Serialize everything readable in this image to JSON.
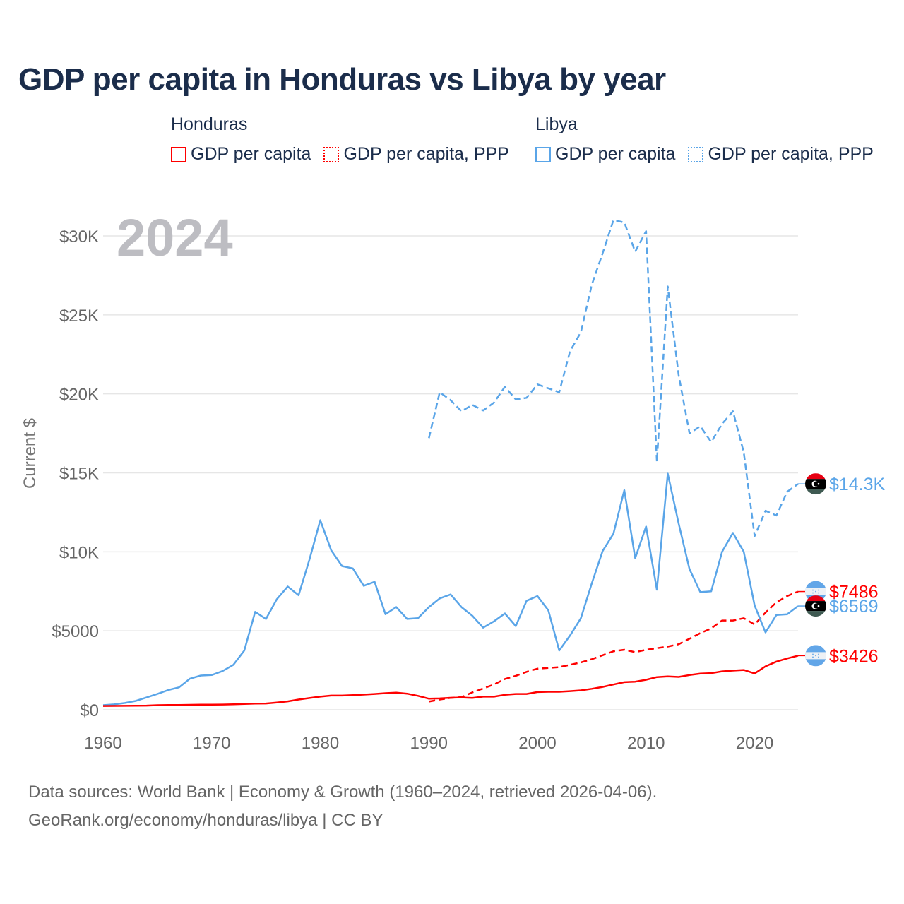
{
  "title": "GDP per capita in Honduras vs Libya by year",
  "legend": {
    "groups": [
      {
        "name": "Honduras",
        "items": [
          {
            "label": "GDP per capita",
            "style": "solid"
          },
          {
            "label": "GDP per capita, PPP",
            "style": "dotted"
          }
        ],
        "color": "#ff0000"
      },
      {
        "name": "Libya",
        "items": [
          {
            "label": "GDP per capita",
            "style": "solid"
          },
          {
            "label": "GDP per capita, PPP",
            "style": "dotted"
          }
        ],
        "color": "#5aa5e8"
      }
    ]
  },
  "year_watermark": "2024",
  "footer": {
    "line1": "Data sources: World Bank | Economy & Growth (1960–2024, retrieved 2026-04-06).",
    "line2": "GeoRank.org/economy/honduras/libya | CC BY"
  },
  "chart_data": {
    "type": "line",
    "title": "GDP per capita in Honduras vs Libya by year",
    "xlabel": "",
    "ylabel": "Current $",
    "xlim": [
      1960,
      2024
    ],
    "ylim": [
      0,
      30000
    ],
    "xticks": [
      1960,
      1970,
      1980,
      1990,
      2000,
      2010,
      2020
    ],
    "xtick_labels": [
      "1960",
      "1970",
      "1980",
      "1990",
      "2000",
      "2010",
      "2020"
    ],
    "yticks": [
      0,
      5000,
      10000,
      15000,
      20000,
      25000,
      30000
    ],
    "ytick_labels": [
      "$0",
      "$5000",
      "$10K",
      "$15K",
      "$20K",
      "$25K",
      "$30K"
    ],
    "grid": true,
    "legend_position": "top",
    "series": [
      {
        "name": "Libya GDP per capita, PPP",
        "country": "Libya",
        "color": "#5aa5e8",
        "dash": true,
        "start": 1990,
        "end_label": "$14.3K",
        "values": [
          17200,
          20100,
          19600,
          18900,
          19300,
          18950,
          19450,
          20450,
          19650,
          19750,
          20600,
          20350,
          20100,
          22700,
          23900,
          26900,
          28900,
          31000,
          30850,
          29000,
          30300,
          15700,
          26800,
          21200,
          17500,
          17950,
          16950,
          18100,
          18900,
          16300,
          11000,
          12600,
          12300,
          13800,
          14300
        ]
      },
      {
        "name": "Honduras GDP per capita, PPP",
        "country": "Honduras",
        "color": "#ff0000",
        "dash": true,
        "start": 1990,
        "end_label": "$7486",
        "values": [
          520,
          650,
          750,
          800,
          1100,
          1350,
          1600,
          1950,
          2150,
          2400,
          2600,
          2650,
          2700,
          2850,
          3000,
          3200,
          3450,
          3700,
          3800,
          3650,
          3800,
          3900,
          4000,
          4150,
          4500,
          4850,
          5150,
          5650,
          5650,
          5800,
          5400,
          6150,
          6800,
          7200,
          7486
        ]
      },
      {
        "name": "Libya GDP per capita",
        "country": "Libya",
        "color": "#5aa5e8",
        "dash": false,
        "start": 1960,
        "end_label": "$6569",
        "values": [
          290,
          340,
          430,
          560,
          780,
          1000,
          1250,
          1420,
          1970,
          2170,
          2200,
          2450,
          2850,
          3750,
          6200,
          5750,
          7000,
          7800,
          7250,
          9500,
          12000,
          10100,
          9100,
          8950,
          7850,
          8100,
          6050,
          6500,
          5750,
          5800,
          6500,
          7050,
          7300,
          6500,
          5950,
          5200,
          5600,
          6100,
          5300,
          6900,
          7200,
          6300,
          3750,
          4700,
          5800,
          8000,
          10050,
          11150,
          13900,
          9600,
          11600,
          7600,
          14950,
          11800,
          8900,
          7450,
          7500,
          10000,
          11200,
          10000,
          6600,
          4900,
          6000,
          6050,
          6569
        ]
      },
      {
        "name": "Honduras GDP per capita",
        "country": "Honduras",
        "color": "#ff0000",
        "dash": false,
        "start": 1960,
        "end_label": "$3426",
        "values": [
          240,
          245,
          250,
          255,
          265,
          290,
          300,
          305,
          315,
          320,
          320,
          330,
          345,
          370,
          390,
          400,
          460,
          530,
          650,
          740,
          830,
          900,
          900,
          930,
          960,
          1000,
          1050,
          1080,
          1020,
          880,
          700,
          720,
          760,
          780,
          750,
          830,
          830,
          950,
          1000,
          1000,
          1120,
          1140,
          1140,
          1180,
          1230,
          1330,
          1450,
          1600,
          1750,
          1780,
          1900,
          2070,
          2110,
          2080,
          2200,
          2290,
          2320,
          2430,
          2480,
          2520,
          2300,
          2750,
          3050,
          3250,
          3426
        ]
      }
    ]
  }
}
